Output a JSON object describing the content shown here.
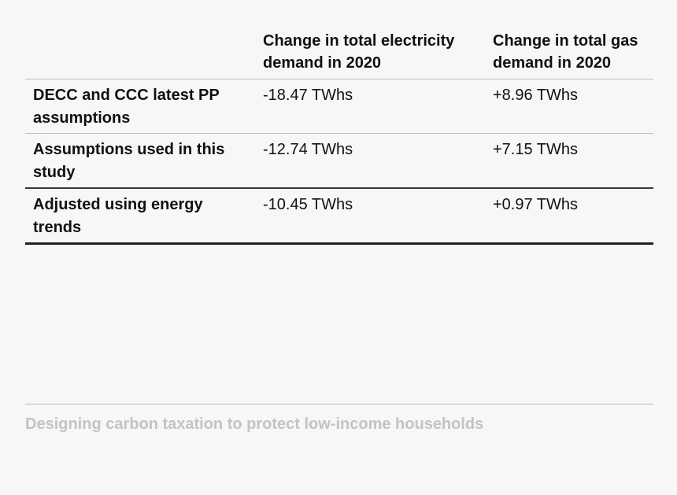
{
  "table": {
    "headers": [
      "",
      "Change in total electricity demand in 2020",
      "Change in total gas demand in 2020"
    ],
    "rows": [
      {
        "label": "DECC and CCC latest PP assumptions",
        "electricity": "-18.47 TWhs",
        "gas": "+8.96 TWhs"
      },
      {
        "label": "Assumptions used in this study",
        "electricity": "-12.74 TWhs",
        "gas": "+7.15 TWhs"
      },
      {
        "label": "Adjusted using energy trends",
        "electricity": "-10.45 TWhs",
        "gas": "+0.97 TWhs"
      }
    ]
  },
  "footer": {
    "title": "Designing carbon taxation to protect low-income households"
  }
}
